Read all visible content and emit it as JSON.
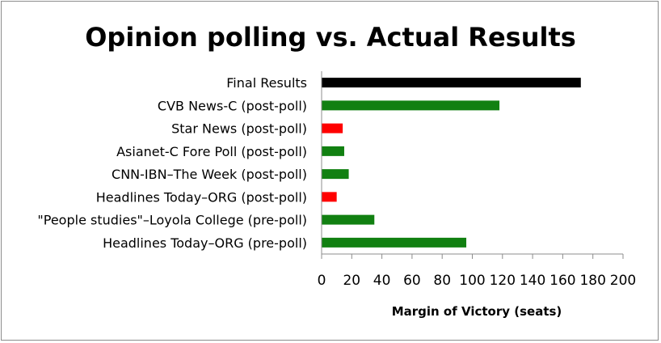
{
  "chart_data": {
    "type": "bar",
    "orientation": "horizontal",
    "title": "Opinion polling vs. Actual Results",
    "xlabel": "Margin of Victory (seats)",
    "ylabel": "",
    "xlim": [
      0,
      200
    ],
    "xticks": [
      0,
      20,
      40,
      60,
      80,
      100,
      120,
      140,
      160,
      180,
      200
    ],
    "grid": false,
    "legend": "none",
    "categories": [
      "Final Results",
      "CVB News-C (post-poll)",
      "Star News (post-poll)",
      "Asianet-C Fore Poll (post-poll)",
      "CNN-IBN–The Week (post-poll)",
      "Headlines Today–ORG (post-poll)",
      "\"People studies\"–Loyola College (pre-poll)",
      "Headlines Today–ORG (pre-poll)"
    ],
    "values": [
      172,
      118,
      14,
      15,
      18,
      10,
      35,
      96
    ],
    "colors": [
      "#000000",
      "#118011",
      "#ff0000",
      "#118011",
      "#118011",
      "#ff0000",
      "#118011",
      "#118011"
    ]
  }
}
